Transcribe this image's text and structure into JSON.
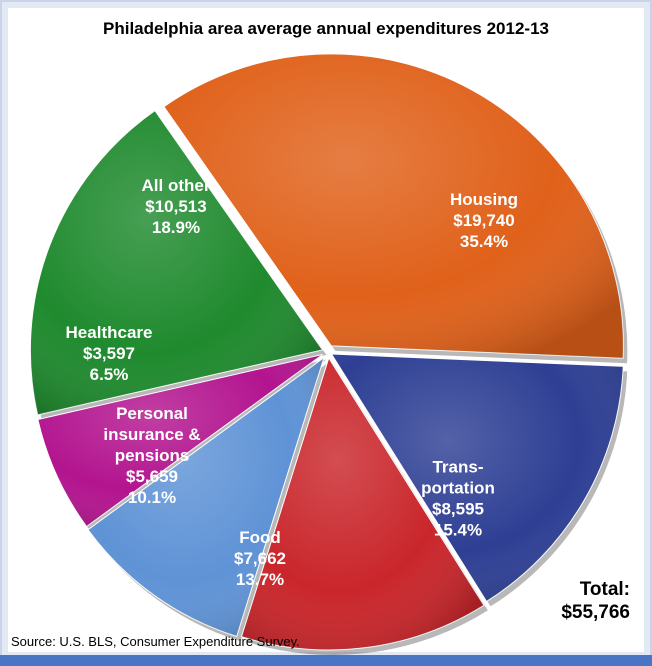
{
  "chart_data": {
    "type": "pie",
    "title": "Philadelphia area average annual expenditures 2012-13",
    "slices": [
      {
        "lines": [
          "Housing",
          "$19,740",
          "35.4%"
        ],
        "value": 19740,
        "percent": 35.4,
        "color": "#e0611a"
      },
      {
        "lines": [
          "Trans-",
          "portation",
          "$8,595",
          "15.4%"
        ],
        "value": 8595,
        "percent": 15.4,
        "color": "#2e3f94"
      },
      {
        "lines": [
          "Food",
          "$7,662",
          "13.7%"
        ],
        "value": 7662,
        "percent": 13.7,
        "color": "#c9262b"
      },
      {
        "lines": [
          "Personal",
          "insurance &",
          "pensions",
          "$5,659",
          "10.1%"
        ],
        "value": 5659,
        "percent": 10.1,
        "color": "#5f93d6"
      },
      {
        "lines": [
          "Healthcare",
          "$3,597",
          "6.5%"
        ],
        "value": 3597,
        "percent": 6.5,
        "color": "#b3148f"
      },
      {
        "lines": [
          "All other",
          "$10,513",
          "18.9%"
        ],
        "value": 10513,
        "percent": 18.9,
        "color": "#1f8a2e"
      }
    ],
    "total_label": "Total:",
    "total_value": "$55,766",
    "source": "Source: U.S. BLS, Consumer Expenditure Survey."
  }
}
